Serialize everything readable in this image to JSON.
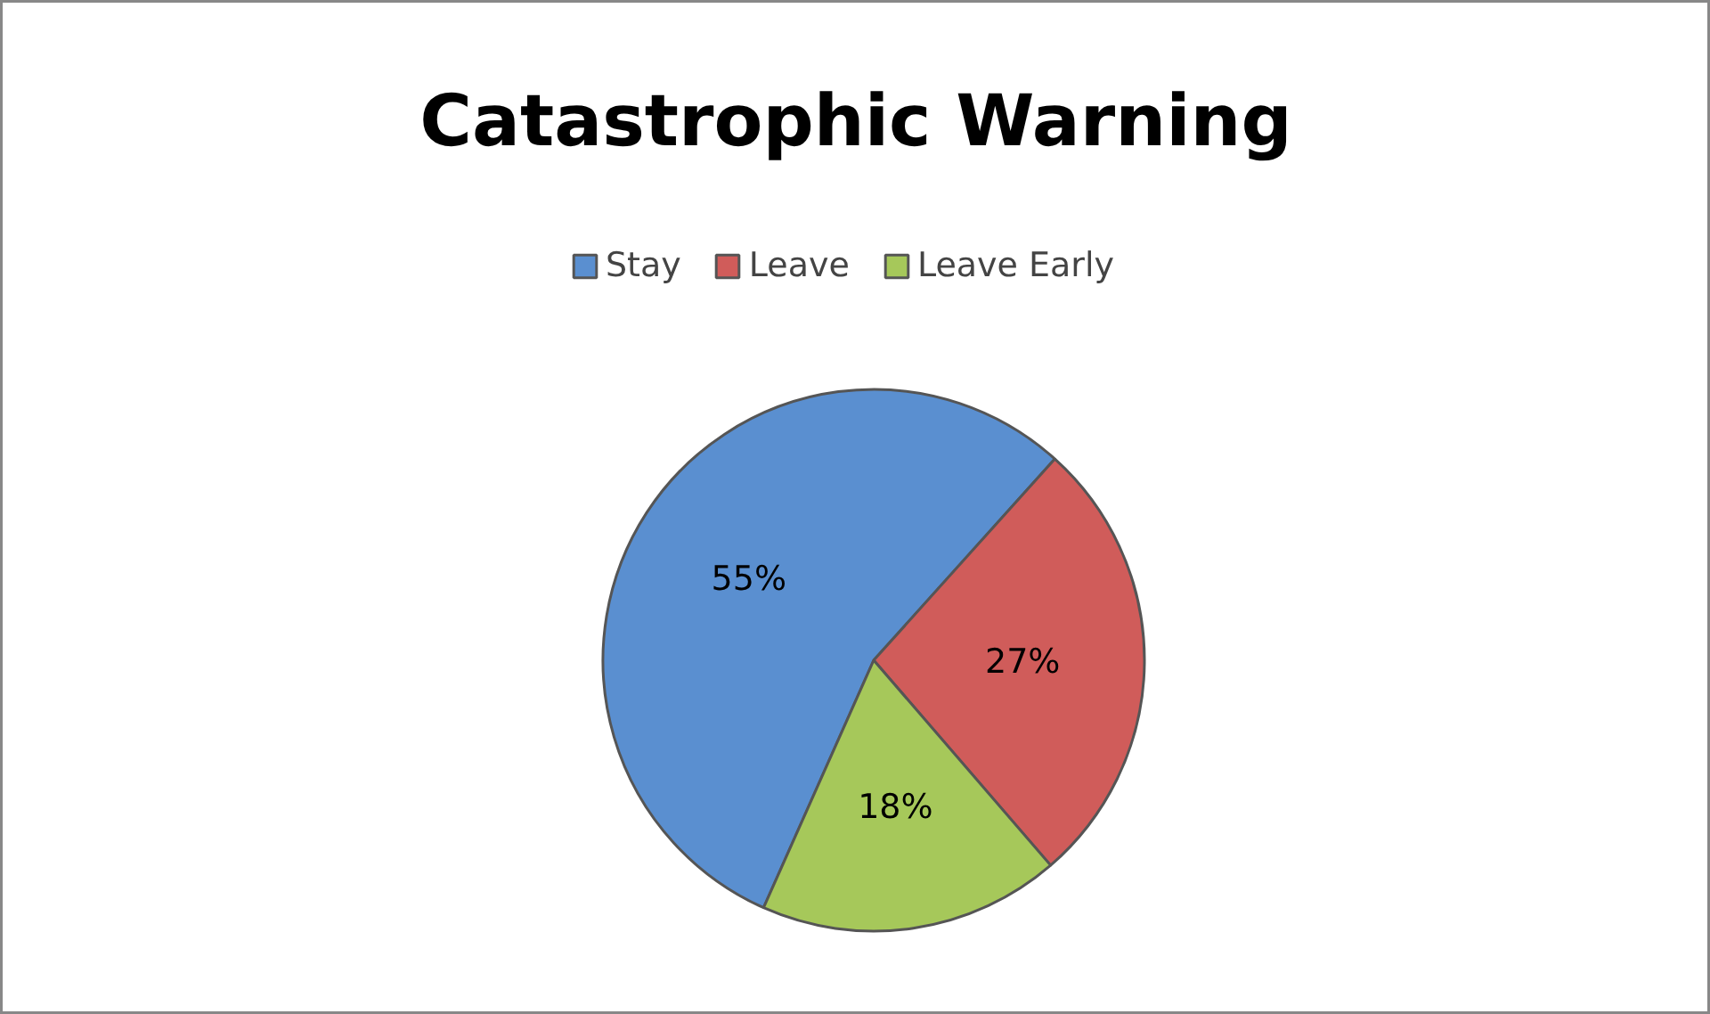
{
  "chart_data": {
    "type": "pie",
    "title": "Catastrophic Warning",
    "categories": [
      "Stay",
      "Leave",
      "Leave Early"
    ],
    "values": [
      55,
      27,
      18
    ],
    "colors": [
      "#5a8fd0",
      "#d05c5a",
      "#a6c85a"
    ],
    "value_labels": [
      "55%",
      "27%",
      "18%"
    ],
    "legend": "top"
  }
}
